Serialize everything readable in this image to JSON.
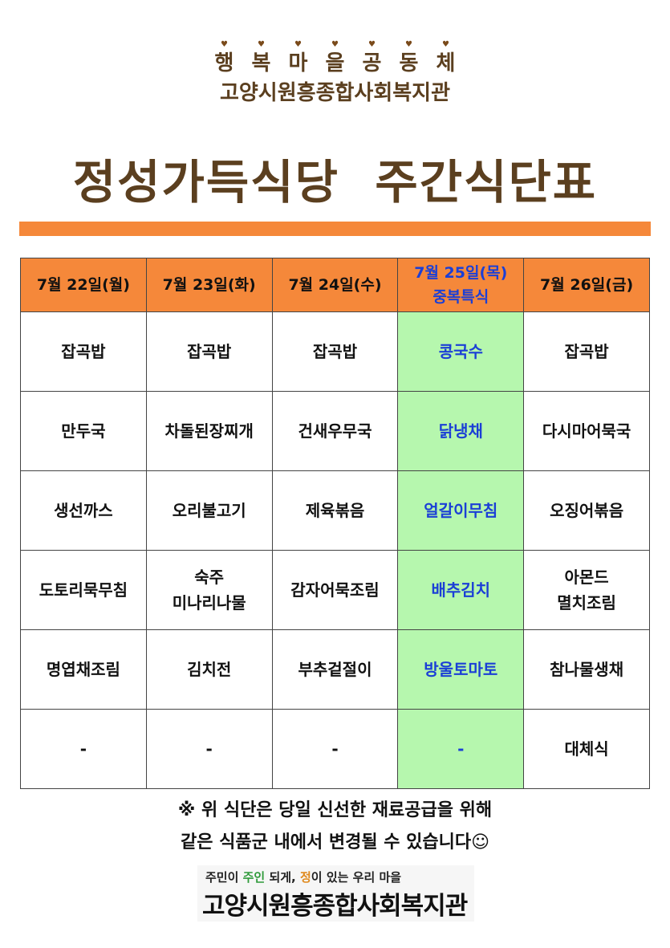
{
  "header": {
    "chars": [
      "행",
      "복",
      "마",
      "을",
      "공",
      "동",
      "체"
    ],
    "org": "고양시원흥종합사회복지관",
    "title": "정성가득식당  주간식단표"
  },
  "menu": {
    "days": [
      {
        "label": "7월 22일(월)",
        "items": [
          "잡곡밥",
          "만두국",
          "생선까스",
          "도토리묵무침",
          "명엽채조림",
          "-"
        ]
      },
      {
        "label": "7월 23일(화)",
        "items": [
          "잡곡밥",
          "차돌된장찌개",
          "오리불고기",
          "숙주\n미나리나물",
          "김치전",
          "-"
        ]
      },
      {
        "label": "7월 24일(수)",
        "items": [
          "잡곡밥",
          "건새우무국",
          "제육볶음",
          "감자어묵조림",
          "부추겉절이",
          "-"
        ]
      },
      {
        "label": "7월 25일(목)",
        "sub": "중복특식",
        "items": [
          "콩국수",
          "닭냉채",
          "얼갈이무침",
          "배추김치",
          "방울토마토",
          "-"
        ]
      },
      {
        "label": "7월 26일(금)",
        "items": [
          "잡곡밥",
          "다시마어묵국",
          "오징어볶음",
          "아몬드\n멸치조림",
          "참나물생채",
          "대체식"
        ]
      }
    ]
  },
  "note": {
    "line1": "※ 위 식단은 당일 신선한 재료공급을 위해",
    "line2": "같은 식품군 내에서 변경될 수 있습니다☺"
  },
  "logo": {
    "slogan_a": "주민이 ",
    "slogan_b": "주인",
    "slogan_c": " 되게, ",
    "slogan_d": "정",
    "slogan_e": "이 있는 우리 마을",
    "name": "고양시원흥종합사회복지관"
  },
  "colors": {
    "accent": "#f5883a",
    "special": "#b6f7ae",
    "special_text": "#1b3fd6",
    "title": "#5b3f1f"
  }
}
